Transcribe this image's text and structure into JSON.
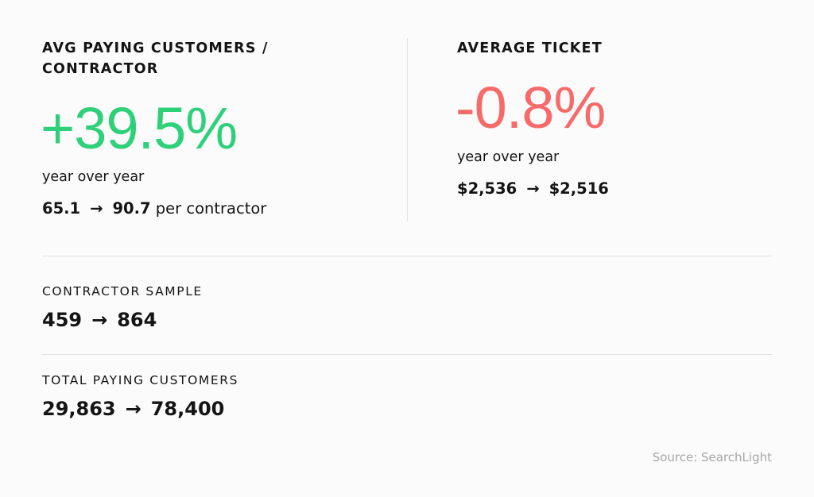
{
  "colors": {
    "positive": "#2fd07a",
    "negative": "#f66a6a",
    "text": "#141414",
    "muted": "#a6a6a6",
    "divider": "#e2e2e2"
  },
  "left": {
    "heading_line1": "AVG PAYING CUSTOMERS /",
    "heading_line2": "CONTRACTOR",
    "value": "+39.5%",
    "yoy": "year over year",
    "from": "65.1",
    "arrow": "→",
    "to": "90.7",
    "suffix": "per contractor"
  },
  "right": {
    "heading": "AVERAGE TICKET",
    "value": "-0.8%",
    "yoy": "year over year",
    "from": "$2,536",
    "arrow": "→",
    "to": "$2,516"
  },
  "contractor_sample": {
    "label": "CONTRACTOR SAMPLE",
    "from": "459",
    "arrow": "→",
    "to": "864"
  },
  "total_paying": {
    "label": "TOTAL PAYING CUSTOMERS",
    "from": "29,863",
    "arrow": "→",
    "to": "78,400"
  },
  "source": "Source: SearchLight"
}
